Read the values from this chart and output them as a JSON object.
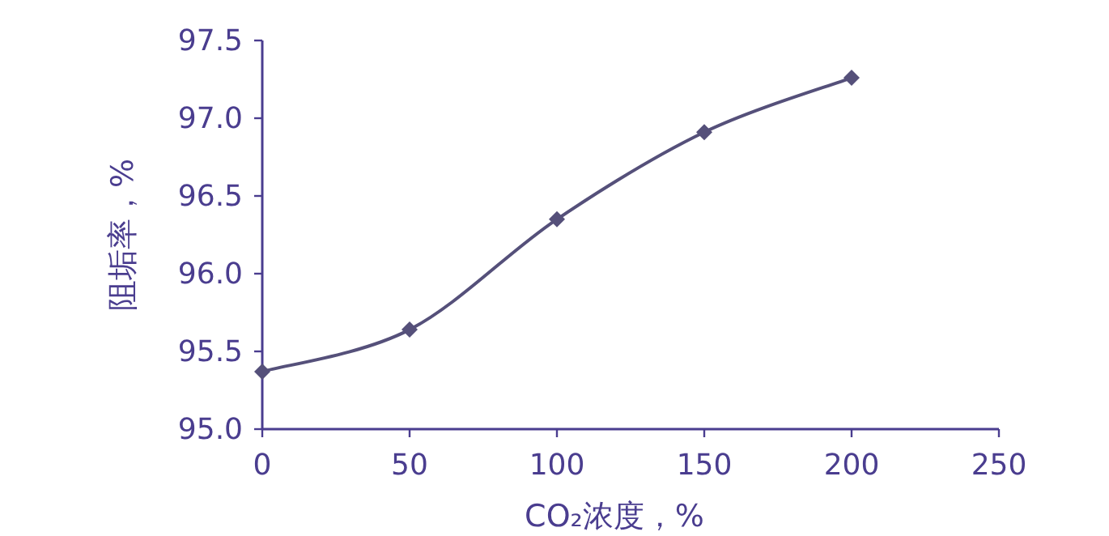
{
  "chart_data": {
    "type": "line",
    "xlabel": "CO₂浓度，%",
    "ylabel": "阻垢率，%",
    "x": [
      0,
      50,
      100,
      150,
      200
    ],
    "series": [
      {
        "color": "#55507a",
        "values": [
          95.37,
          95.64,
          96.35,
          96.91,
          97.26
        ]
      }
    ],
    "xlim": [
      0,
      250
    ],
    "xticks": [
      0,
      50,
      100,
      150,
      200,
      250
    ],
    "ylim": [
      95,
      97.5
    ],
    "yticks": [
      {
        "value": 95,
        "label": "95.0"
      },
      {
        "value": 95.5,
        "label": "95.5"
      },
      {
        "value": 96,
        "label": "96.0"
      },
      {
        "value": 96.5,
        "label": "96.5"
      },
      {
        "value": 97,
        "label": "97.0"
      },
      {
        "value": 97.5,
        "label": "97.5"
      }
    ],
    "marker": "diamond",
    "line_style": "solid",
    "grid": false
  }
}
